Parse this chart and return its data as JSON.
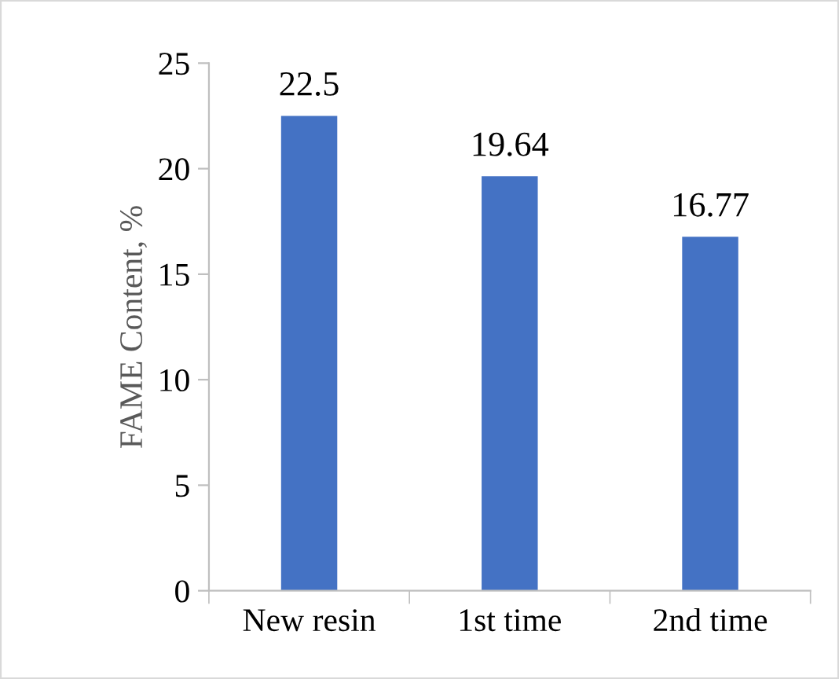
{
  "chart_data": {
    "type": "bar",
    "ylabel": "FAME Content, %",
    "categories": [
      "New resin",
      "1st time",
      "2nd time"
    ],
    "values": [
      22.5,
      19.64,
      16.77
    ],
    "color": "#4472c4",
    "ylim": [
      0,
      25
    ],
    "yticks": [
      0,
      5,
      10,
      15,
      20,
      25
    ],
    "grid": false,
    "data_labels": true
  }
}
